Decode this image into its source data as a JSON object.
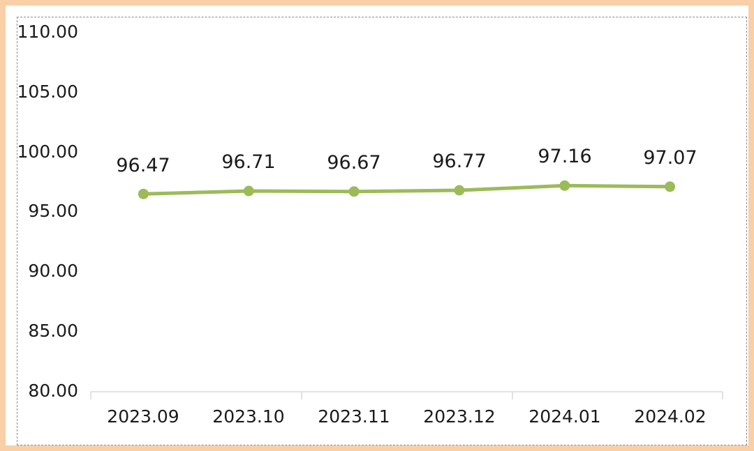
{
  "chart_data": {
    "type": "line",
    "categories": [
      "2023.09",
      "2023.10",
      "2023.11",
      "2023.12",
      "2024.01",
      "2024.02"
    ],
    "series": [
      {
        "values": [
          96.47,
          96.71,
          96.67,
          96.77,
          97.16,
          97.07
        ],
        "labels": [
          "96.47",
          "96.71",
          "96.67",
          "96.77",
          "97.16",
          "97.07"
        ]
      }
    ],
    "ylim": [
      80,
      110
    ],
    "ytick_labels": [
      "80.00",
      "85.00",
      "90.00",
      "95.00",
      "100.00",
      "105.00",
      "110.00"
    ],
    "grid": false,
    "legend": "none",
    "colors": {
      "line": "#9bbb59",
      "axis": "#d9d9d9",
      "frame_border": "#f8cfa6"
    }
  }
}
